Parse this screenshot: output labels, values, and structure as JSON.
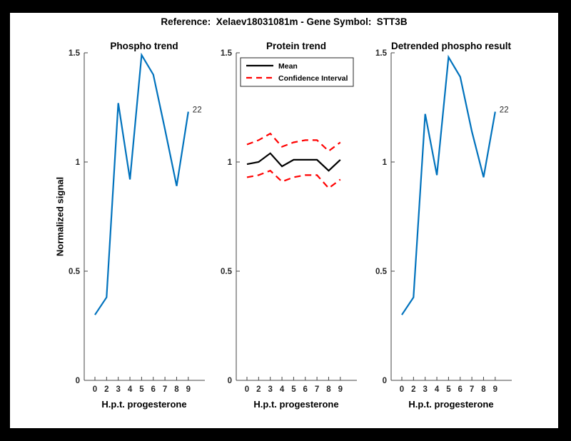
{
  "figure": {
    "title": "Reference:  Xelaev18031081m - Gene Symbol:  STT3B",
    "outer_background": "#000000",
    "canvas_background": "#ffffff"
  },
  "colors": {
    "line_blue": "#0072BD",
    "ci_red": "#FF0000",
    "mean_black": "#000000",
    "axis_color": "#444444",
    "tick_text_color": "#262626"
  },
  "axes": {
    "ylabel": "Normalized signal",
    "ylim": [
      0,
      1.5
    ],
    "ytick_values": [
      0,
      0.5,
      1,
      1.5
    ],
    "ytick_labels": [
      "0",
      "0.5",
      "1",
      "1.5"
    ],
    "xtick_labels": [
      "0",
      "2",
      "3",
      "4",
      "5",
      "6",
      "7",
      "8",
      "9"
    ],
    "grid": false
  },
  "chart_data": [
    {
      "type": "line",
      "title": "Phospho trend",
      "xlabel": "H.p.t. progesterone",
      "ylabel": "Normalized signal",
      "x_labels": [
        "0",
        "2",
        "3",
        "4",
        "5",
        "6",
        "7",
        "8",
        "9"
      ],
      "ylim": [
        0,
        1.5
      ],
      "series": [
        {
          "name": "phospho-signal",
          "color": "#0072BD",
          "style": "solid",
          "values": [
            0.3,
            0.38,
            1.27,
            0.92,
            1.49,
            1.4,
            1.15,
            0.89,
            1.23
          ]
        }
      ],
      "end_label": "22"
    },
    {
      "type": "line",
      "title": "Protein trend",
      "xlabel": "H.p.t. progesterone",
      "x_labels": [
        "0",
        "2",
        "3",
        "4",
        "5",
        "6",
        "7",
        "8",
        "9"
      ],
      "ylim": [
        0,
        1.5
      ],
      "series": [
        {
          "name": "mean",
          "color": "#000000",
          "style": "solid",
          "values": [
            0.99,
            1.0,
            1.04,
            0.98,
            1.01,
            1.01,
            1.01,
            0.96,
            1.01
          ]
        },
        {
          "name": "confidence-interval-upper",
          "color": "#FF0000",
          "style": "dashed",
          "values": [
            1.08,
            1.1,
            1.13,
            1.07,
            1.09,
            1.1,
            1.1,
            1.05,
            1.09
          ]
        },
        {
          "name": "confidence-interval-lower",
          "color": "#FF0000",
          "style": "dashed",
          "values": [
            0.93,
            0.94,
            0.96,
            0.91,
            0.93,
            0.94,
            0.94,
            0.88,
            0.92
          ]
        }
      ],
      "legend": {
        "position": "top-left",
        "entries": [
          {
            "label": "Mean",
            "color": "#000000",
            "style": "solid"
          },
          {
            "label": "Confidence Interval",
            "color": "#FF0000",
            "style": "dashed"
          }
        ]
      }
    },
    {
      "type": "line",
      "title": "Detrended phospho result",
      "xlabel": "H.p.t. progesterone",
      "x_labels": [
        "0",
        "2",
        "3",
        "4",
        "5",
        "6",
        "7",
        "8",
        "9"
      ],
      "ylim": [
        0,
        1.5
      ],
      "series": [
        {
          "name": "detrended-phospho-signal",
          "color": "#0072BD",
          "style": "solid",
          "values": [
            0.3,
            0.38,
            1.22,
            0.94,
            1.48,
            1.39,
            1.14,
            0.93,
            1.23
          ]
        }
      ],
      "end_label": "22"
    }
  ]
}
